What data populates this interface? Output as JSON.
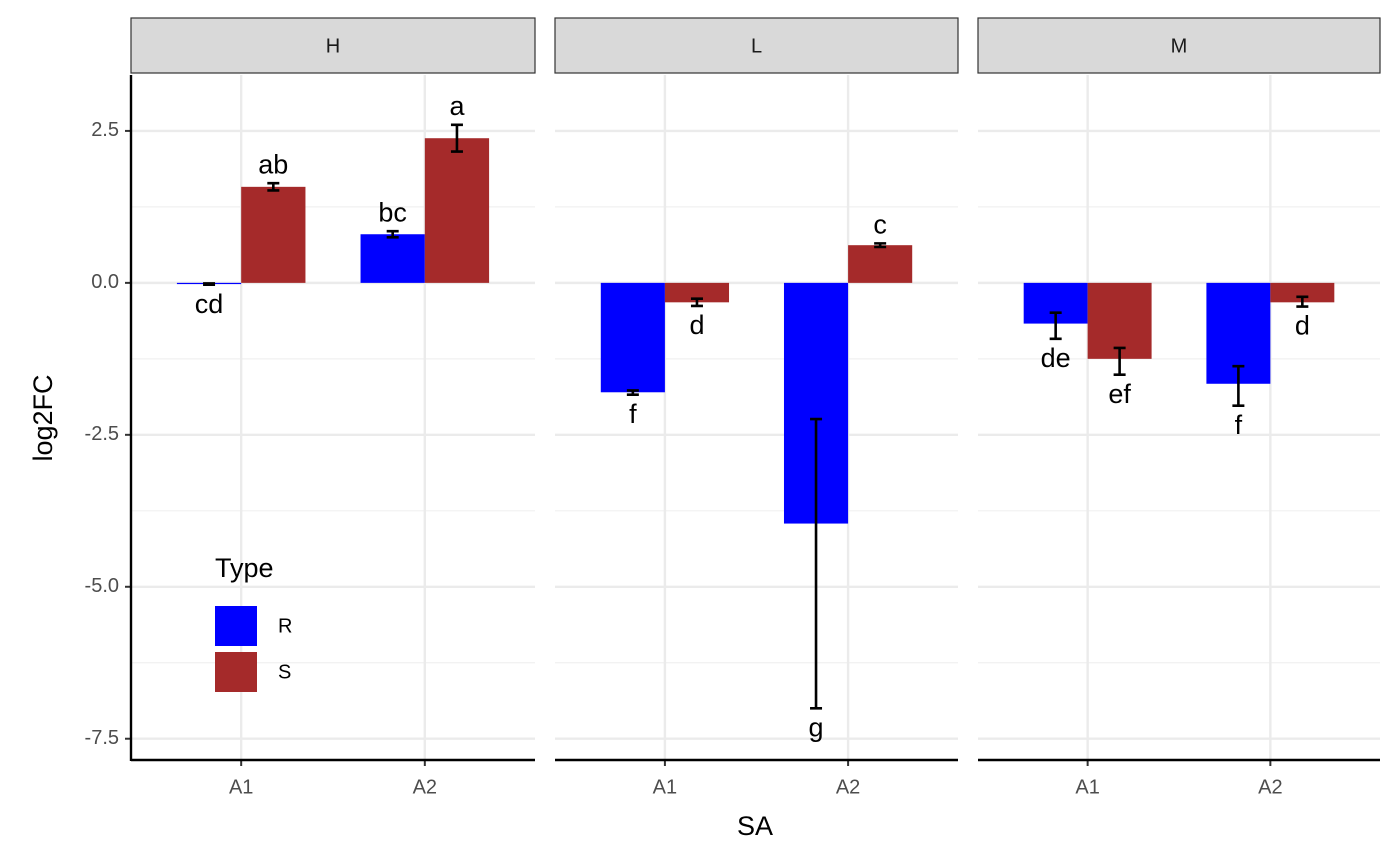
{
  "chart_data": {
    "type": "bar",
    "x_label": "SA",
    "y_label": "log2FC",
    "legend_title": "Type",
    "legend_position": "bottom-left",
    "categories": [
      "A1",
      "A2"
    ],
    "ylim": [
      -7.85,
      3.42
    ],
    "yticks": [
      {
        "value": -7.5,
        "label": "-7.5"
      },
      {
        "value": -5,
        "label": "-5.0"
      },
      {
        "value": -2.5,
        "label": "-2.5"
      },
      {
        "value": 0,
        "label": "0.0"
      },
      {
        "value": 2.5,
        "label": "2.5"
      }
    ],
    "minor_yticks": [
      -6.25,
      -3.75,
      -1.25,
      1.25
    ],
    "grid": true,
    "types": [
      {
        "name": "R",
        "color": "#0000ff"
      },
      {
        "name": "S",
        "color": "#a52a2a"
      }
    ],
    "panels": [
      {
        "name": "H",
        "series": [
          {
            "values": [
              -0.02,
              0.8
            ],
            "ymin": [
              -0.03,
              0.75
            ],
            "ymax": [
              -0.01,
              0.85
            ],
            "labels": [
              "cd",
              "bc"
            ]
          },
          {
            "values": [
              1.58,
              2.38
            ],
            "ymin": [
              1.52,
              2.16
            ],
            "ymax": [
              1.64,
              2.6
            ],
            "labels": [
              "ab",
              "a"
            ]
          }
        ]
      },
      {
        "name": "L",
        "series": [
          {
            "values": [
              -1.8,
              -3.96
            ],
            "ymin": [
              -1.84,
              -7.0
            ],
            "ymax": [
              -1.77,
              -2.24
            ],
            "labels": [
              "f",
              "g"
            ]
          },
          {
            "values": [
              -0.32,
              0.62
            ],
            "ymin": [
              -0.38,
              0.59
            ],
            "ymax": [
              -0.26,
              0.65
            ],
            "labels": [
              "d",
              "c"
            ]
          }
        ]
      },
      {
        "name": "M",
        "series": [
          {
            "values": [
              -0.67,
              -1.66
            ],
            "ymin": [
              -0.92,
              -2.02
            ],
            "ymax": [
              -0.49,
              -1.37
            ],
            "labels": [
              "de",
              "f"
            ]
          },
          {
            "values": [
              -1.25,
              -0.32
            ],
            "ymin": [
              -1.51,
              -0.39
            ],
            "ymax": [
              -1.07,
              -0.23
            ],
            "labels": [
              "ef",
              "d"
            ]
          }
        ]
      }
    ]
  }
}
